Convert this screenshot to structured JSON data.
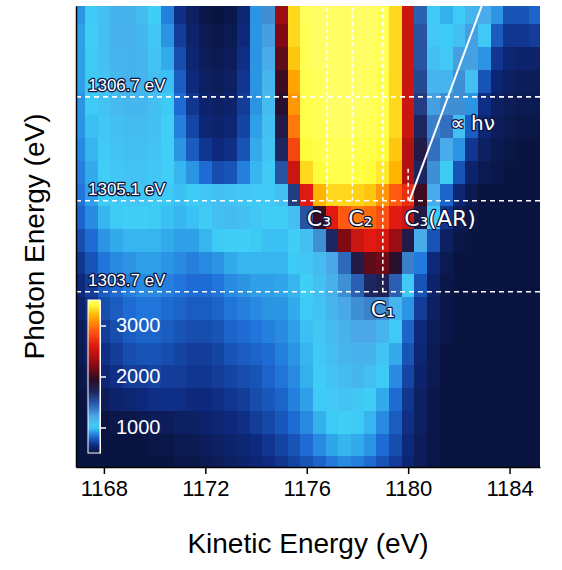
{
  "chart_data": {
    "type": "heatmap",
    "x_label": "Kinetic Energy (eV)",
    "y_label": "Photon Energy (eV)",
    "xlim": [
      1166.9,
      1185.2
    ],
    "ylim": [
      1301,
      1308.1
    ],
    "xticks": [
      1168,
      1172,
      1176,
      1180,
      1184
    ],
    "tick_labels": "x",
    "x": [
      1167,
      1167.5,
      1168,
      1168.5,
      1169,
      1169.5,
      1170,
      1170.5,
      1171,
      1171.5,
      1172,
      1172.5,
      1173,
      1173.5,
      1174,
      1174.5,
      1175,
      1175.5,
      1176,
      1176.5,
      1177,
      1177.5,
      1178,
      1178.5,
      1179,
      1179.5,
      1180,
      1180.5,
      1181,
      1181.5,
      1182,
      1182.5,
      1183,
      1183.5,
      1184,
      1184.5,
      1185
    ],
    "y": [
      1301,
      1301.35,
      1301.7,
      1302.05,
      1302.4,
      1302.75,
      1303.1,
      1303.45,
      1303.8,
      1304.15,
      1304.5,
      1304.85,
      1305.2,
      1305.55,
      1305.9,
      1306.25,
      1306.6,
      1306.95,
      1307.3,
      1307.65,
      1308
    ],
    "z": [
      [
        500,
        500,
        500,
        500,
        500,
        500,
        500,
        500,
        520,
        520,
        540,
        560,
        580,
        600,
        620,
        650,
        680,
        720,
        760,
        800,
        850,
        880,
        860,
        820,
        760,
        700,
        620,
        560,
        520,
        500,
        500,
        500,
        500,
        500,
        500,
        500,
        500
      ],
      [
        500,
        500,
        500,
        500,
        500,
        500,
        520,
        520,
        540,
        540,
        560,
        580,
        600,
        620,
        650,
        680,
        720,
        760,
        820,
        880,
        930,
        960,
        940,
        900,
        820,
        740,
        640,
        560,
        520,
        500,
        500,
        500,
        500,
        500,
        500,
        500,
        500
      ],
      [
        500,
        500,
        500,
        520,
        520,
        540,
        560,
        560,
        580,
        580,
        600,
        620,
        640,
        660,
        700,
        730,
        770,
        820,
        880,
        950,
        1000,
        1020,
        1000,
        960,
        880,
        780,
        660,
        580,
        520,
        500,
        500,
        500,
        500,
        500,
        500,
        500,
        500
      ],
      [
        500,
        520,
        560,
        600,
        620,
        640,
        660,
        660,
        660,
        640,
        640,
        660,
        680,
        700,
        740,
        770,
        800,
        860,
        920,
        1000,
        1050,
        1080,
        1060,
        1020,
        940,
        820,
        680,
        580,
        520,
        500,
        500,
        500,
        500,
        500,
        500,
        500,
        500
      ],
      [
        520,
        560,
        620,
        660,
        700,
        700,
        720,
        700,
        700,
        680,
        680,
        700,
        720,
        740,
        760,
        800,
        840,
        880,
        950,
        1030,
        1080,
        1120,
        1140,
        1100,
        1000,
        880,
        720,
        600,
        540,
        500,
        500,
        500,
        500,
        500,
        500,
        500,
        500
      ],
      [
        540,
        600,
        660,
        700,
        740,
        760,
        760,
        740,
        720,
        700,
        700,
        720,
        760,
        780,
        800,
        820,
        860,
        900,
        960,
        1050,
        1100,
        1150,
        1170,
        1160,
        1080,
        940,
        760,
        620,
        540,
        500,
        500,
        500,
        500,
        500,
        500,
        500,
        500
      ],
      [
        560,
        620,
        700,
        740,
        780,
        800,
        800,
        780,
        760,
        740,
        740,
        760,
        800,
        820,
        840,
        860,
        880,
        920,
        980,
        1060,
        1120,
        1180,
        1220,
        1220,
        1150,
        1000,
        800,
        640,
        560,
        520,
        500,
        500,
        500,
        500,
        500,
        500,
        500
      ],
      [
        600,
        660,
        740,
        780,
        820,
        840,
        840,
        820,
        800,
        780,
        780,
        800,
        840,
        860,
        880,
        900,
        900,
        940,
        1000,
        1080,
        1150,
        1220,
        1300,
        1340,
        1300,
        1150,
        900,
        700,
        580,
        520,
        500,
        500,
        500,
        500,
        500,
        500,
        500
      ],
      [
        640,
        700,
        780,
        820,
        860,
        880,
        880,
        860,
        840,
        820,
        820,
        840,
        880,
        900,
        920,
        920,
        930,
        960,
        1020,
        1100,
        1180,
        1300,
        1450,
        1700,
        1750,
        1450,
        1050,
        760,
        600,
        520,
        500,
        500,
        500,
        500,
        500,
        500,
        500
      ],
      [
        680,
        760,
        840,
        880,
        900,
        920,
        920,
        900,
        880,
        860,
        880,
        900,
        940,
        960,
        960,
        960,
        960,
        1000,
        1060,
        1120,
        1220,
        1420,
        1800,
        2100,
        2150,
        1900,
        1350,
        850,
        640,
        540,
        500,
        500,
        500,
        500,
        500,
        500,
        500
      ],
      [
        740,
        820,
        900,
        940,
        960,
        960,
        960,
        940,
        920,
        920,
        960,
        1000,
        1020,
        1020,
        1000,
        980,
        980,
        1020,
        1100,
        1300,
        1700,
        2200,
        2500,
        2600,
        2550,
        2300,
        1800,
        1200,
        760,
        580,
        520,
        500,
        500,
        500,
        500,
        500,
        500
      ],
      [
        800,
        880,
        960,
        1000,
        1020,
        1020,
        1000,
        980,
        960,
        980,
        1040,
        1100,
        1120,
        1100,
        1060,
        1020,
        1020,
        1100,
        1500,
        2000,
        2600,
        2900,
        3000,
        2950,
        2850,
        2600,
        2500,
        1800,
        1000,
        680,
        560,
        520,
        500,
        500,
        500,
        500,
        500
      ],
      [
        840,
        920,
        1000,
        1040,
        1060,
        1060,
        1040,
        1000,
        980,
        1000,
        1060,
        1100,
        1080,
        1060,
        1040,
        1040,
        1100,
        1600,
        2600,
        3200,
        3300,
        3300,
        3280,
        3250,
        3100,
        2900,
        2700,
        2000,
        1200,
        800,
        620,
        540,
        500,
        500,
        500,
        500,
        500
      ],
      [
        860,
        940,
        1020,
        1060,
        1080,
        1080,
        1060,
        1020,
        960,
        900,
        820,
        740,
        760,
        860,
        960,
        1040,
        1500,
        2500,
        3300,
        3400,
        3430,
        3430,
        3420,
        3400,
        3350,
        3200,
        2400,
        1700,
        1300,
        1000,
        760,
        600,
        540,
        520,
        500,
        500,
        500
      ],
      [
        880,
        960,
        1040,
        1080,
        1100,
        1100,
        1080,
        1020,
        900,
        780,
        680,
        640,
        660,
        760,
        940,
        1080,
        1700,
        2800,
        3400,
        3430,
        3450,
        3450,
        3440,
        3430,
        3400,
        3250,
        2400,
        1800,
        1400,
        1200,
        900,
        680,
        580,
        540,
        520,
        500,
        500
      ],
      [
        900,
        980,
        1060,
        1100,
        1120,
        1120,
        1100,
        1020,
        860,
        720,
        620,
        600,
        620,
        720,
        920,
        1100,
        1800,
        3000,
        3430,
        3450,
        3480,
        3480,
        3460,
        3450,
        3430,
        3300,
        2500,
        1700,
        1350,
        1400,
        1100,
        780,
        620,
        560,
        540,
        520,
        520
      ],
      [
        900,
        1000,
        1080,
        1120,
        1140,
        1140,
        1100,
        1000,
        820,
        680,
        600,
        580,
        600,
        700,
        900,
        1120,
        1900,
        3100,
        3430,
        3450,
        3480,
        3480,
        3480,
        3460,
        3430,
        3300,
        2500,
        1600,
        1250,
        1300,
        1300,
        900,
        660,
        580,
        560,
        540,
        540
      ],
      [
        920,
        1000,
        1080,
        1140,
        1160,
        1150,
        1100,
        980,
        780,
        640,
        580,
        560,
        580,
        680,
        900,
        1150,
        2000,
        3150,
        3440,
        3460,
        3480,
        3480,
        3480,
        3460,
        3440,
        3300,
        2500,
        1550,
        1150,
        1150,
        1300,
        1100,
        760,
        620,
        580,
        560,
        560
      ],
      [
        920,
        1000,
        1100,
        1150,
        1170,
        1150,
        1080,
        940,
        740,
        620,
        560,
        540,
        560,
        660,
        900,
        1200,
        2100,
        3250,
        3450,
        3480,
        3480,
        3480,
        3480,
        3480,
        3450,
        3300,
        2500,
        1500,
        1100,
        1050,
        1250,
        1250,
        900,
        680,
        620,
        600,
        600
      ],
      [
        920,
        1020,
        1100,
        1160,
        1170,
        1140,
        1060,
        900,
        700,
        600,
        540,
        520,
        540,
        640,
        900,
        1250,
        2200,
        3300,
        3450,
        3480,
        3480,
        3480,
        3480,
        3480,
        3450,
        3300,
        2500,
        1500,
        1050,
        1000,
        1100,
        1250,
        1050,
        780,
        680,
        680,
        700
      ],
      [
        900,
        1000,
        1100,
        1160,
        1160,
        1120,
        1020,
        860,
        660,
        580,
        520,
        500,
        520,
        620,
        900,
        1300,
        2300,
        3300,
        3460,
        3480,
        3480,
        3480,
        3480,
        3480,
        3450,
        3300,
        2500,
        1450,
        1000,
        950,
        1000,
        1150,
        1200,
        900,
        760,
        760,
        800
      ]
    ],
    "colorbar": {
      "range": [
        500,
        3500
      ],
      "ticks": [
        1000,
        2000,
        3000
      ]
    },
    "annotations": {
      "h_lines": [
        {
          "y": 1306.7,
          "label": "1306.7 eV"
        },
        {
          "y": 1305.1,
          "label": "1305.1 eV"
        },
        {
          "y": 1303.7,
          "label": "1303.7 eV"
        }
      ],
      "markers": [
        {
          "label": "C₃",
          "x": 1176.8,
          "y_from": 1305.1,
          "y_to": 1308.1
        },
        {
          "label": "C₂",
          "x": 1177.8,
          "y_from": 1305.1,
          "y_to": 1308.1
        },
        {
          "label": "C₁",
          "x": 1179,
          "y_from": 1303.7,
          "y_to": 1308.1
        },
        {
          "label": "C₃(AR)",
          "x": 1180,
          "y_from": 1305.1,
          "y_to": 1305.6
        }
      ],
      "slope_line": {
        "label": "∝ hν",
        "x": [
          1180.05,
          1182.9
        ],
        "y": [
          1305.1,
          1308.1
        ]
      }
    }
  }
}
